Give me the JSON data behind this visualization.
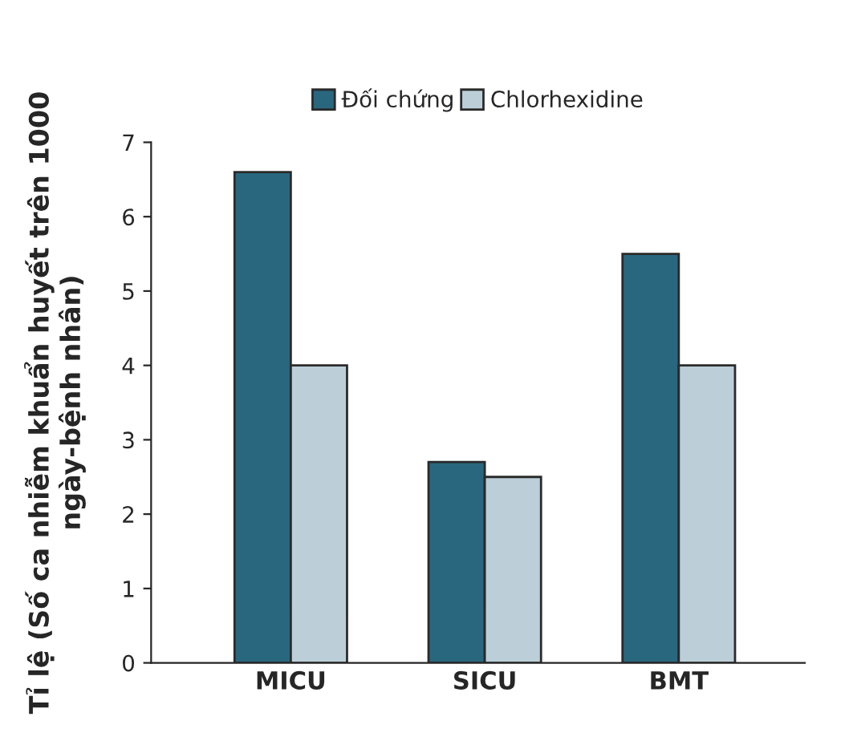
{
  "chart_data": {
    "type": "bar",
    "ylabel": "Tỉ lệ (Số ca nhiễm khuẩn huyết trên 1000 ngày-bệnh nhân)",
    "categories": [
      "MICU",
      "SICU",
      "BMT"
    ],
    "series": [
      {
        "name": "Đối chứng",
        "color": "#29677f",
        "values": [
          6.6,
          2.7,
          5.5
        ]
      },
      {
        "name": "Chlorhexidine",
        "color": "#bccfd9",
        "values": [
          4.0,
          2.5,
          4.0
        ]
      }
    ],
    "ylim": [
      0,
      7
    ],
    "yticks": [
      0,
      1,
      2,
      3,
      4,
      5,
      6,
      7
    ],
    "grid": false,
    "legend": "top"
  }
}
